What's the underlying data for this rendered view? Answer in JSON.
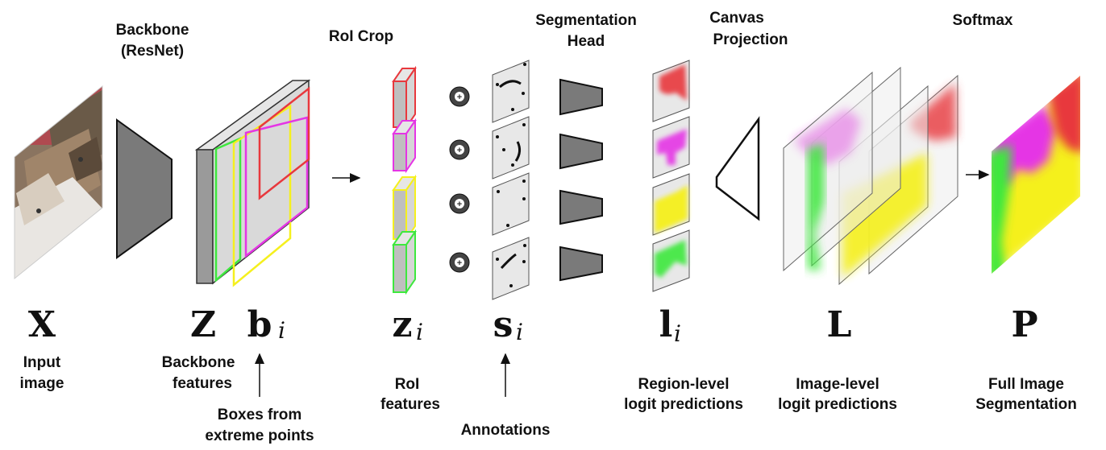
{
  "stages": {
    "backbone": {
      "line1": "Backbone",
      "line2": "(ResNet)"
    },
    "roi_crop": "RoI Crop",
    "seg_head": {
      "line1": "Segmentation",
      "line2": "Head"
    },
    "canvas_projection": {
      "line1": "Canvas",
      "line2": "Projection"
    },
    "softmax": "Softmax"
  },
  "symbols": {
    "x": "X",
    "z": "Z",
    "b": "b",
    "b_sub": "i",
    "zi": "z",
    "zi_sub": "i",
    "si": "s",
    "si_sub": "i",
    "li": "l",
    "li_sub": "i",
    "L": "L",
    "P": "P"
  },
  "captions": {
    "input": {
      "line1": "Input",
      "line2": "image"
    },
    "backbone_features": {
      "line1": "Backbone",
      "line2": "features"
    },
    "boxes": {
      "line1": "Boxes from",
      "line2": "extreme points"
    },
    "roi_features": {
      "line1": "RoI",
      "line2": "features"
    },
    "annotations": "Annotations",
    "region_logits": {
      "line1": "Region-level",
      "line2": "logit predictions"
    },
    "image_logits": {
      "line1": "Image-level",
      "line2": "logit predictions"
    },
    "full_seg": {
      "line1": "Full Image",
      "line2": "Segmentation"
    }
  },
  "plus_symbol": "+",
  "colors": {
    "red": "#e8383d",
    "magenta": "#e535e5",
    "yellow": "#f5f01e",
    "green": "#3ee83e",
    "gray_fill": "#d9d9d9",
    "dark_gray": "#7a7a7a"
  }
}
